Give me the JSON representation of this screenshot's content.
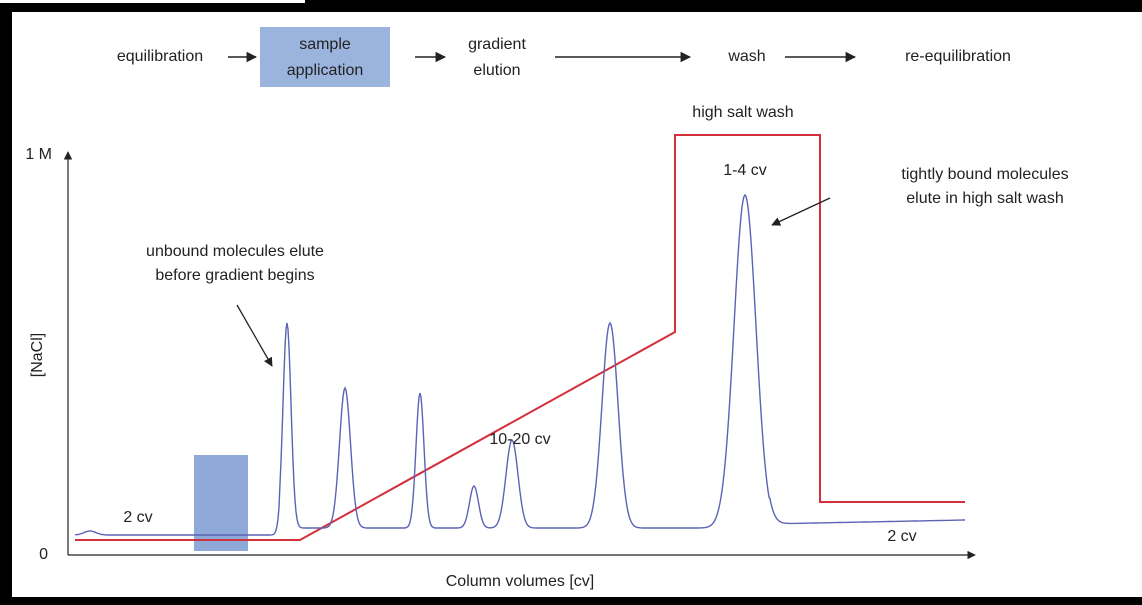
{
  "steps": [
    {
      "label": [
        "equilibration"
      ]
    },
    {
      "label": [
        "sample",
        "application"
      ]
    },
    {
      "label": [
        "gradient",
        "elution"
      ]
    },
    {
      "label": [
        "wash"
      ]
    },
    {
      "label": [
        "re-equilibration"
      ]
    }
  ],
  "axes": {
    "y_top": "1 M",
    "y_bottom": "0",
    "y_label": "[NaCl]",
    "x_label": "Column volumes [cv]"
  },
  "annotations": {
    "high_salt": "high salt wash",
    "cv_left": "2 cv",
    "cv_right": "2 cv",
    "cv_wash": "1-4 cv",
    "cv_gradient": "10-20 cv",
    "unbound": [
      "unbound molecules elute",
      "before gradient begins"
    ],
    "tightly": [
      "tightly bound molecules",
      "elute in high salt wash"
    ]
  }
}
